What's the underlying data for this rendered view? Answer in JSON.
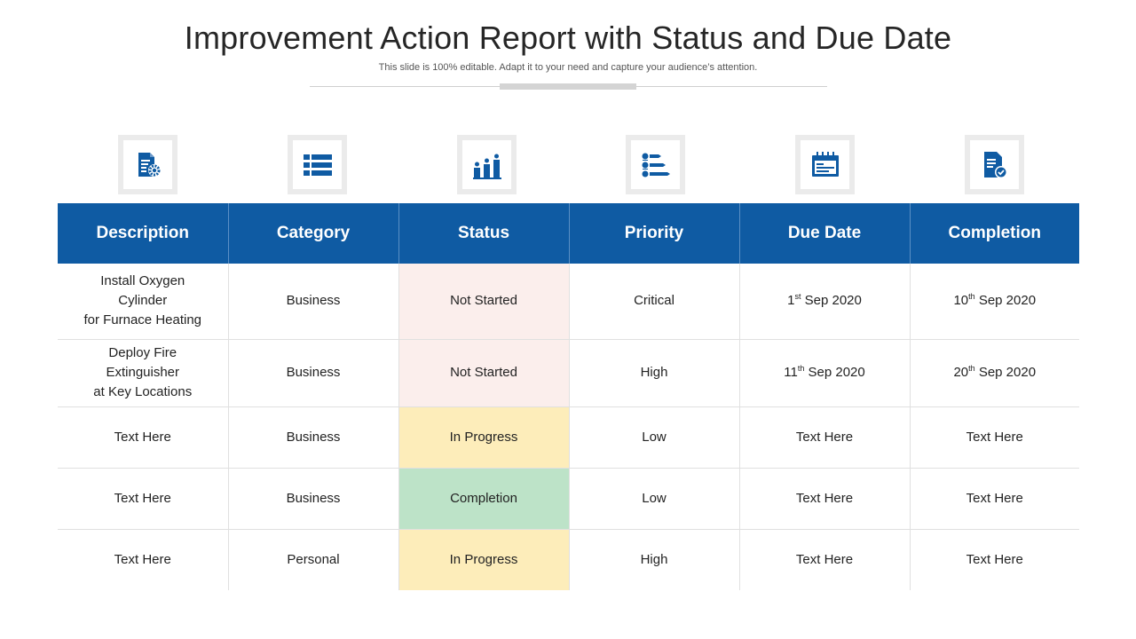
{
  "header": {
    "title": "Improvement Action Report with Status and Due Date",
    "subtitle": "This slide is 100% editable. Adapt it to your need and capture your audience’s attention."
  },
  "icons": [
    "document-gear-icon",
    "list-icon",
    "team-chart-icon",
    "priority-list-icon",
    "calendar-icon",
    "document-check-icon"
  ],
  "colors": {
    "header_bg": "#0f5ba3",
    "not_started": "#fbeeec",
    "in_progress": "#fdedba",
    "completion": "#bde3c8"
  },
  "table": {
    "columns": [
      "Description",
      "Category",
      "Status",
      "Priority",
      "Due Date",
      "Completion"
    ],
    "rows": [
      {
        "description": [
          "Install Oxygen",
          "Cylinder",
          "for Furnace Heating"
        ],
        "category": "Business",
        "status": "Not Started",
        "priority": "Critical",
        "due": {
          "day": "1",
          "suffix": "st",
          "rest": "Sep 2020"
        },
        "completion": {
          "day": "10",
          "suffix": "th",
          "rest": "Sep 2020"
        }
      },
      {
        "description": [
          "Deploy Fire",
          "Extinguisher",
          "at Key Locations"
        ],
        "category": "Business",
        "status": "Not Started",
        "priority": "High",
        "due": {
          "day": "11",
          "suffix": "th",
          "rest": "Sep 2020"
        },
        "completion": {
          "day": "20",
          "suffix": "th",
          "rest": "Sep 2020"
        }
      },
      {
        "description": [
          "Text Here"
        ],
        "category": "Business",
        "status": "In Progress",
        "priority": "Low",
        "due_text": "Text Here",
        "completion_text": "Text Here"
      },
      {
        "description": [
          "Text Here"
        ],
        "category": "Business",
        "status": "Completion",
        "priority": "Low",
        "due_text": "Text Here",
        "completion_text": "Text Here"
      },
      {
        "description": [
          "Text Here"
        ],
        "category": "Personal",
        "status": "In Progress",
        "priority": "High",
        "due_text": "Text Here",
        "completion_text": "Text Here"
      }
    ]
  }
}
